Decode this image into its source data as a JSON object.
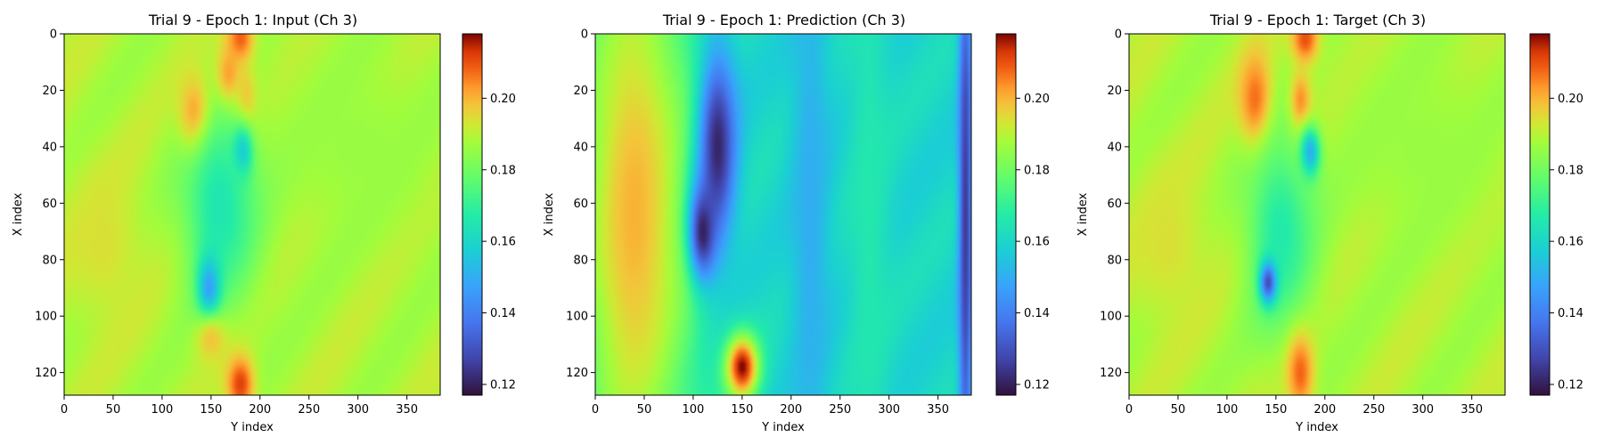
{
  "chart_data": [
    {
      "type": "heatmap",
      "title": "Trial 9 - Epoch 1: Input (Ch 3)",
      "xlabel": "Y index",
      "ylabel": "X index",
      "xlim": [
        0,
        384
      ],
      "ylim": [
        128,
        0
      ],
      "xticks": [
        "0",
        "50",
        "100",
        "150",
        "200",
        "250",
        "300",
        "350"
      ],
      "yticks": [
        "0",
        "20",
        "40",
        "60",
        "80",
        "100",
        "120"
      ],
      "colormap": "turbo",
      "colorbar": {
        "min": 0.117,
        "max": 0.218,
        "ticks": [
          "0.12",
          "0.14",
          "0.16",
          "0.18",
          "0.20"
        ]
      },
      "field": {
        "background": 0.189,
        "features": [
          {
            "x": 180,
            "y": 2,
            "sx": 10,
            "sy": 6,
            "v": 0.212
          },
          {
            "x": 135,
            "y": 30,
            "sx": 12,
            "sy": 10,
            "v": 0.215
          },
          {
            "x": 168,
            "y": 16,
            "sx": 10,
            "sy": 8,
            "v": 0.212
          },
          {
            "x": 185,
            "y": 24,
            "sx": 8,
            "sy": 8,
            "v": 0.208
          },
          {
            "x": 182,
            "y": 42,
            "sx": 7,
            "sy": 6,
            "v": 0.138
          },
          {
            "x": 160,
            "y": 60,
            "sx": 28,
            "sy": 25,
            "v": 0.164
          },
          {
            "x": 148,
            "y": 90,
            "sx": 8,
            "sy": 8,
            "v": 0.146
          },
          {
            "x": 150,
            "y": 108,
            "sx": 12,
            "sy": 6,
            "v": 0.198
          },
          {
            "x": 180,
            "y": 124,
            "sx": 10,
            "sy": 7,
            "v": 0.212
          },
          {
            "x": 40,
            "y": 75,
            "sx": 30,
            "sy": 20,
            "v": 0.194
          },
          {
            "x": 300,
            "y": 40,
            "sx": 60,
            "sy": 25,
            "v": 0.186
          }
        ]
      }
    },
    {
      "type": "heatmap",
      "title": "Trial 9 - Epoch 1: Prediction (Ch 3)",
      "xlabel": "Y index",
      "ylabel": "X index",
      "xlim": [
        0,
        384
      ],
      "ylim": [
        128,
        0
      ],
      "xticks": [
        "0",
        "50",
        "100",
        "150",
        "200",
        "250",
        "300",
        "350"
      ],
      "yticks": [
        "0",
        "20",
        "40",
        "60",
        "80",
        "100",
        "120"
      ],
      "colormap": "turbo",
      "colorbar": {
        "min": 0.117,
        "max": 0.218,
        "ticks": [
          "0.12",
          "0.14",
          "0.16",
          "0.18",
          "0.20"
        ]
      },
      "field": {
        "background": 0.16,
        "features": [
          {
            "x": 40,
            "y": 64,
            "sx": 45,
            "sy": 80,
            "v": 0.2
          },
          {
            "x": 125,
            "y": 40,
            "sx": 14,
            "sy": 25,
            "v": 0.121
          },
          {
            "x": 110,
            "y": 70,
            "sx": 10,
            "sy": 12,
            "v": 0.12
          },
          {
            "x": 150,
            "y": 118,
            "sx": 12,
            "sy": 8,
            "v": 0.218
          },
          {
            "x": 378,
            "y": 64,
            "sx": 5,
            "sy": 80,
            "v": 0.125
          },
          {
            "x": 280,
            "y": 64,
            "sx": 15,
            "sy": 80,
            "v": 0.166
          },
          {
            "x": 220,
            "y": 64,
            "sx": 15,
            "sy": 80,
            "v": 0.15
          }
        ]
      }
    },
    {
      "type": "heatmap",
      "title": "Trial 9 - Epoch 1: Target (Ch 3)",
      "xlabel": "Y index",
      "ylabel": "X index",
      "xlim": [
        0,
        384
      ],
      "ylim": [
        128,
        0
      ],
      "xticks": [
        "0",
        "50",
        "100",
        "150",
        "200",
        "250",
        "300",
        "350"
      ],
      "yticks": [
        "0",
        "20",
        "40",
        "60",
        "80",
        "100",
        "120"
      ],
      "colormap": "turbo",
      "colorbar": {
        "min": 0.117,
        "max": 0.218,
        "ticks": [
          "0.12",
          "0.14",
          "0.16",
          "0.18",
          "0.20"
        ]
      },
      "field": {
        "background": 0.189,
        "features": [
          {
            "x": 180,
            "y": 2,
            "sx": 10,
            "sy": 6,
            "v": 0.212
          },
          {
            "x": 130,
            "y": 25,
            "sx": 12,
            "sy": 12,
            "v": 0.212
          },
          {
            "x": 175,
            "y": 25,
            "sx": 8,
            "sy": 8,
            "v": 0.212
          },
          {
            "x": 185,
            "y": 42,
            "sx": 7,
            "sy": 6,
            "v": 0.135
          },
          {
            "x": 155,
            "y": 70,
            "sx": 25,
            "sy": 25,
            "v": 0.166
          },
          {
            "x": 142,
            "y": 88,
            "sx": 6,
            "sy": 5,
            "v": 0.128
          },
          {
            "x": 175,
            "y": 120,
            "sx": 10,
            "sy": 10,
            "v": 0.208
          },
          {
            "x": 40,
            "y": 75,
            "sx": 30,
            "sy": 20,
            "v": 0.194
          },
          {
            "x": 300,
            "y": 40,
            "sx": 60,
            "sy": 25,
            "v": 0.186
          }
        ]
      }
    }
  ]
}
